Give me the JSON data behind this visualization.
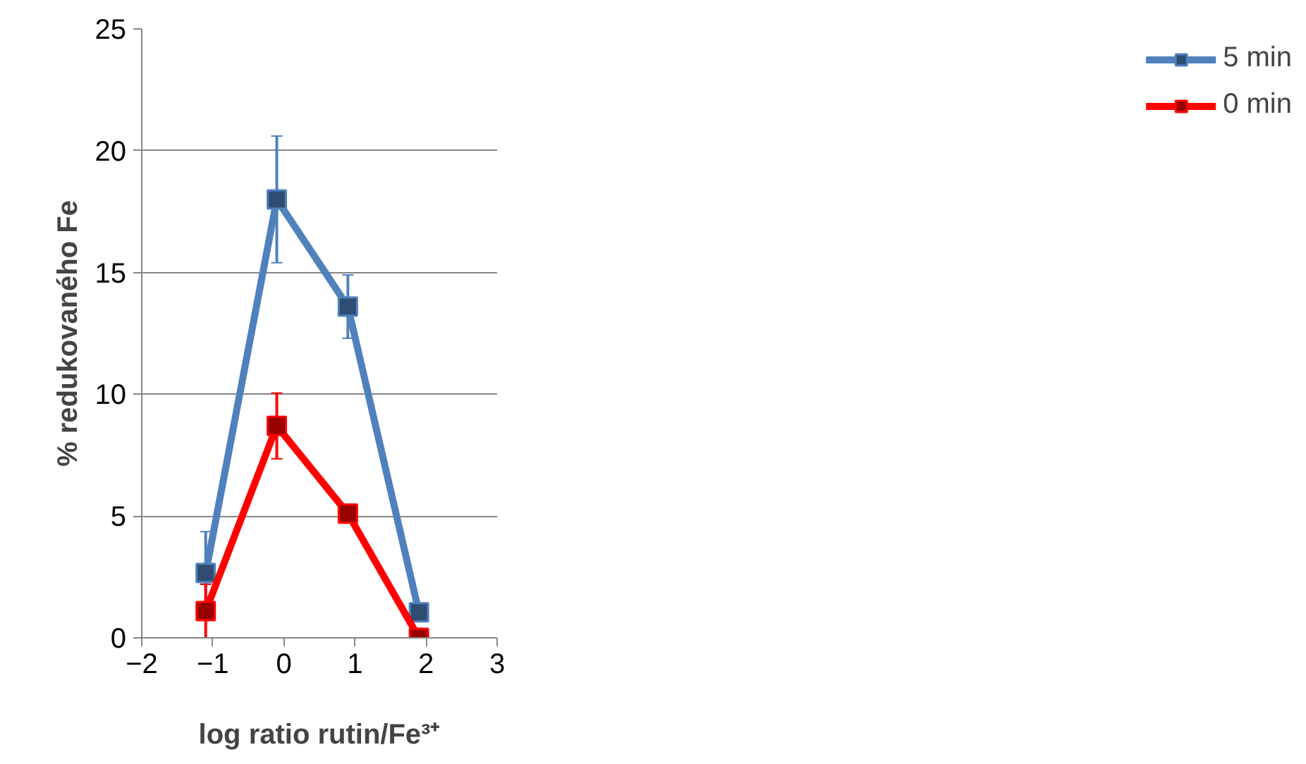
{
  "chart_data": {
    "type": "line",
    "xlabel": "log ratio rutin/Fe³⁺",
    "ylabel": "% redukovaného Fe",
    "x": [
      -1.1,
      -0.1,
      0.9,
      1.9
    ],
    "series": [
      {
        "name": "5 min",
        "color": "#4f81bd",
        "values": [
          2.66,
          18.0,
          13.6,
          1.05
        ],
        "errors": [
          1.7,
          2.6,
          1.3,
          null
        ]
      },
      {
        "name": "0 min",
        "color": "#ff0000",
        "values": [
          1.1,
          8.7,
          5.1,
          0.0
        ],
        "errors": [
          1.1,
          1.35,
          null,
          null
        ]
      }
    ],
    "xlim": [
      -2,
      3
    ],
    "xticks": [
      -2,
      -1,
      0,
      1,
      2,
      3
    ],
    "ylim": [
      0,
      25
    ],
    "yticks": [
      0,
      5,
      10,
      15,
      20,
      25
    ],
    "grid": "y",
    "legend": "right",
    "marker": "square",
    "line_style": "solid"
  }
}
